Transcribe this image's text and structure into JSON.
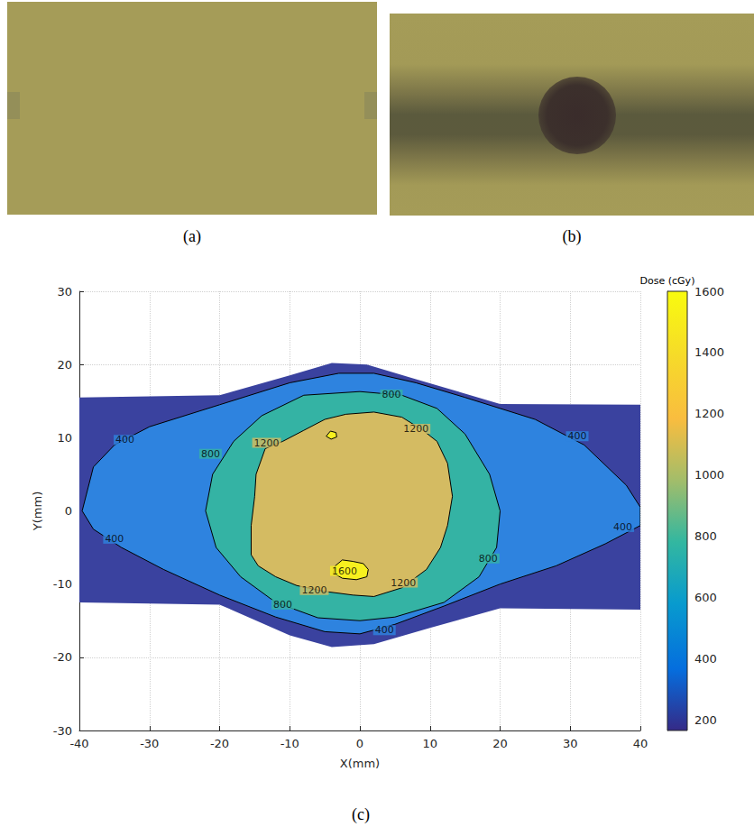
{
  "figure": {
    "panel_labels": [
      "(a)",
      "(b)",
      "(c)"
    ]
  },
  "chart_data": {
    "type": "contour",
    "xlabel": "X(mm)",
    "ylabel": "Y(mm)",
    "xlim": [
      -40,
      40
    ],
    "xticks": [
      -40,
      -30,
      -20,
      -10,
      0,
      10,
      20,
      30,
      40
    ],
    "ylim": [
      -30,
      30
    ],
    "yticks": [
      -30,
      -20,
      -10,
      0,
      10,
      20,
      30
    ],
    "grid": true,
    "extent": {
      "color": "#3a429f",
      "polygon": [
        [
          -40,
          15.5
        ],
        [
          -20,
          15.8
        ],
        [
          -10,
          18.5
        ],
        [
          -4,
          20.2
        ],
        [
          1,
          20
        ],
        [
          8,
          18
        ],
        [
          20,
          14.6
        ],
        [
          40,
          14.5
        ],
        [
          40,
          -13.5
        ],
        [
          20,
          -13.3
        ],
        [
          10,
          -16
        ],
        [
          2,
          -18.2
        ],
        [
          -4,
          -18.6
        ],
        [
          -10,
          -17
        ],
        [
          -20,
          -12.8
        ],
        [
          -40,
          -12.5
        ]
      ]
    },
    "contours": [
      {
        "level": 400,
        "color": "#2e83df",
        "polygon": [
          [
            -39.6,
            0
          ],
          [
            -38,
            6
          ],
          [
            -35,
            9
          ],
          [
            -30,
            11.5
          ],
          [
            -20,
            14.5
          ],
          [
            -10,
            17.5
          ],
          [
            -3,
            18.8
          ],
          [
            2,
            18.8
          ],
          [
            8,
            17.5
          ],
          [
            15,
            15.5
          ],
          [
            25,
            12.5
          ],
          [
            32,
            9
          ],
          [
            38,
            3.5
          ],
          [
            40,
            0.5
          ],
          [
            40,
            -2
          ],
          [
            35,
            -4.5
          ],
          [
            28,
            -7.5
          ],
          [
            20,
            -10
          ],
          [
            12,
            -13
          ],
          [
            5,
            -15.5
          ],
          [
            0,
            -16.8
          ],
          [
            -5,
            -16.5
          ],
          [
            -12,
            -14.5
          ],
          [
            -20,
            -11.5
          ],
          [
            -28,
            -8
          ],
          [
            -34,
            -5
          ],
          [
            -38,
            -2.5
          ]
        ]
      },
      {
        "level": 800,
        "color": "#34b3a4",
        "polygon": [
          [
            -22,
            0
          ],
          [
            -21,
            5
          ],
          [
            -18,
            9.5
          ],
          [
            -14,
            13
          ],
          [
            -8,
            15.8
          ],
          [
            0,
            16.3
          ],
          [
            6,
            15.8
          ],
          [
            11,
            14
          ],
          [
            15,
            10.5
          ],
          [
            18.5,
            5
          ],
          [
            20,
            0
          ],
          [
            19.5,
            -5
          ],
          [
            17,
            -9
          ],
          [
            12,
            -12.5
          ],
          [
            5,
            -14.5
          ],
          [
            0,
            -15
          ],
          [
            -6,
            -14.6
          ],
          [
            -12,
            -12.5
          ],
          [
            -17,
            -9
          ],
          [
            -20.5,
            -5
          ]
        ]
      },
      {
        "level": 1200,
        "color": "#d4bb62",
        "polygon": [
          [
            -15.5,
            -6
          ],
          [
            -15.5,
            -2
          ],
          [
            -15,
            2
          ],
          [
            -14.8,
            5
          ],
          [
            -13.5,
            8.5
          ],
          [
            -11,
            9.5
          ],
          [
            -8,
            11
          ],
          [
            -5,
            12.5
          ],
          [
            -2,
            13.2
          ],
          [
            2,
            13.5
          ],
          [
            6,
            12.8
          ],
          [
            9,
            11
          ],
          [
            11,
            9.5
          ],
          [
            12.5,
            6.5
          ],
          [
            13.2,
            2
          ],
          [
            12.5,
            -2
          ],
          [
            11.5,
            -5
          ],
          [
            9.5,
            -8
          ],
          [
            6,
            -10.5
          ],
          [
            2,
            -11.7
          ],
          [
            -1,
            -11.5
          ],
          [
            -5,
            -11
          ],
          [
            -9,
            -10.2
          ],
          [
            -12,
            -9
          ],
          [
            -14.5,
            -7.5
          ]
        ]
      },
      {
        "level": 1600,
        "color": "#f7f01f",
        "polygon": [
          [
            -3.5,
            -7.5
          ],
          [
            -2.5,
            -6.7
          ],
          [
            -1,
            -6.9
          ],
          [
            0.5,
            -7.2
          ],
          [
            1.2,
            -8
          ],
          [
            1,
            -9
          ],
          [
            -0.5,
            -9.4
          ],
          [
            -2.5,
            -9.2
          ],
          [
            -3.8,
            -8.5
          ]
        ]
      },
      {
        "level": 1600,
        "color": "#f7f01f",
        "polygon": [
          [
            -4.8,
            10.2
          ],
          [
            -4.2,
            10.9
          ],
          [
            -3.4,
            10.7
          ],
          [
            -3.3,
            10.1
          ],
          [
            -4.1,
            9.8
          ]
        ]
      }
    ],
    "contour_labels": [
      {
        "value": 400,
        "x": -33.5,
        "y": 9.7
      },
      {
        "value": 400,
        "x": -35,
        "y": -3.8
      },
      {
        "value": 400,
        "x": 31,
        "y": 10.2
      },
      {
        "value": 400,
        "x": 37.5,
        "y": -2.2
      },
      {
        "value": 400,
        "x": 3.5,
        "y": -16.3
      },
      {
        "value": 800,
        "x": -21.3,
        "y": 7.8
      },
      {
        "value": 800,
        "x": 4.5,
        "y": 15.9
      },
      {
        "value": 800,
        "x": -11,
        "y": -12.8
      },
      {
        "value": 800,
        "x": 18.3,
        "y": -6.5
      },
      {
        "value": 1200,
        "x": -13.3,
        "y": 9.3
      },
      {
        "value": 1200,
        "x": 8,
        "y": 11.2
      },
      {
        "value": 1200,
        "x": -6.5,
        "y": -10.8
      },
      {
        "value": 1200,
        "x": 6.2,
        "y": -9.8
      },
      {
        "value": 1600,
        "x": -2.2,
        "y": -8.2
      }
    ],
    "colorbar": {
      "title": "Dose (cGy)",
      "range": [
        165,
        1600
      ],
      "ticks": [
        200,
        400,
        600,
        800,
        1000,
        1200,
        1400,
        1600
      ]
    }
  }
}
